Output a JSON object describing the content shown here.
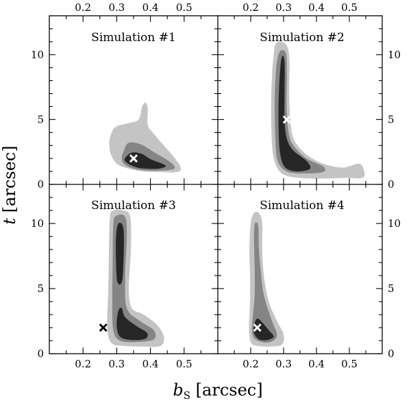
{
  "chart_data": {
    "type": "contour",
    "xlabel": {
      "base": "b",
      "sub": "S",
      "rest": " [arcsec]"
    },
    "ylabel": {
      "base": "t",
      "rest": " [arcsec]"
    },
    "shades": [
      "#c4c4c4",
      "#858585",
      "#262626"
    ],
    "panels": [
      {
        "title": "Simulation #1",
        "xlim": [
          0.1,
          0.6
        ],
        "ylim": [
          0,
          13
        ],
        "xticks": [
          0.2,
          0.3,
          0.4,
          0.5
        ],
        "yticks": [
          0,
          5,
          10
        ],
        "marker": {
          "x": 0.35,
          "y": 2.0,
          "color": "#ffffff"
        },
        "contours": [
          [
            [
              0.28,
              3.6
            ],
            [
              0.295,
              4.4
            ],
            [
              0.33,
              4.7
            ],
            [
              0.365,
              5.0
            ],
            [
              0.375,
              6.0
            ],
            [
              0.386,
              6.3
            ],
            [
              0.392,
              5.8
            ],
            [
              0.392,
              4.6
            ],
            [
              0.41,
              3.9
            ],
            [
              0.44,
              3.0
            ],
            [
              0.47,
              2.1
            ],
            [
              0.49,
              1.3
            ],
            [
              0.48,
              0.95
            ],
            [
              0.43,
              0.95
            ],
            [
              0.38,
              1.0
            ],
            [
              0.33,
              1.25
            ],
            [
              0.3,
              1.6
            ],
            [
              0.283,
              2.3
            ],
            [
              0.278,
              3.0
            ]
          ],
          [
            [
              0.32,
              2.5
            ],
            [
              0.335,
              3.2
            ],
            [
              0.37,
              3.1
            ],
            [
              0.41,
              2.5
            ],
            [
              0.46,
              1.7
            ],
            [
              0.47,
              1.2
            ],
            [
              0.42,
              1.05
            ],
            [
              0.36,
              1.15
            ],
            [
              0.325,
              1.5
            ],
            [
              0.315,
              2.0
            ]
          ],
          [
            [
              0.325,
              2.05
            ],
            [
              0.345,
              2.45
            ],
            [
              0.375,
              2.35
            ],
            [
              0.4,
              1.95
            ],
            [
              0.445,
              1.45
            ],
            [
              0.42,
              1.2
            ],
            [
              0.37,
              1.25
            ],
            [
              0.34,
              1.5
            ],
            [
              0.325,
              1.8
            ]
          ]
        ]
      },
      {
        "title": "Simulation #2",
        "xlim": [
          0.1,
          0.6
        ],
        "ylim": [
          0,
          13
        ],
        "xticks": [
          0.2,
          0.3,
          0.4,
          0.5
        ],
        "yticks": [
          0,
          5,
          10
        ],
        "marker": {
          "x": 0.31,
          "y": 5.0,
          "color": "#ffffff"
        },
        "contours": [
          [
            [
              0.27,
              10.0
            ],
            [
              0.275,
              10.8
            ],
            [
              0.29,
              11.0
            ],
            [
              0.31,
              10.7
            ],
            [
              0.318,
              9.5
            ],
            [
              0.317,
              7.0
            ],
            [
              0.322,
              4.5
            ],
            [
              0.335,
              3.3
            ],
            [
              0.37,
              2.3
            ],
            [
              0.42,
              1.6
            ],
            [
              0.48,
              1.3
            ],
            [
              0.53,
              1.6
            ],
            [
              0.545,
              1.0
            ],
            [
              0.54,
              0.5
            ],
            [
              0.49,
              0.5
            ],
            [
              0.42,
              0.45
            ],
            [
              0.35,
              0.5
            ],
            [
              0.3,
              0.75
            ],
            [
              0.275,
              1.6
            ],
            [
              0.265,
              3.0
            ],
            [
              0.262,
              6.0
            ],
            [
              0.265,
              8.5
            ]
          ],
          [
            [
              0.28,
              9.5
            ],
            [
              0.29,
              10.3
            ],
            [
              0.307,
              10.1
            ],
            [
              0.31,
              8.5
            ],
            [
              0.309,
              6.0
            ],
            [
              0.315,
              4.0
            ],
            [
              0.33,
              3.0
            ],
            [
              0.37,
              2.0
            ],
            [
              0.42,
              1.4
            ],
            [
              0.42,
              0.95
            ],
            [
              0.36,
              0.85
            ],
            [
              0.31,
              1.0
            ],
            [
              0.282,
              1.8
            ],
            [
              0.275,
              3.5
            ],
            [
              0.273,
              6.0
            ],
            [
              0.275,
              8.0
            ]
          ],
          [
            [
              0.29,
              9.0
            ],
            [
              0.296,
              9.9
            ],
            [
              0.303,
              9.4
            ],
            [
              0.303,
              7.0
            ],
            [
              0.303,
              5.0
            ],
            [
              0.31,
              3.5
            ],
            [
              0.33,
              2.6
            ],
            [
              0.37,
              1.8
            ],
            [
              0.38,
              1.2
            ],
            [
              0.34,
              1.0
            ],
            [
              0.305,
              1.3
            ],
            [
              0.29,
              2.3
            ],
            [
              0.285,
              4.0
            ],
            [
              0.285,
              6.5
            ]
          ]
        ]
      },
      {
        "title": "Simulation #3",
        "xlim": [
          0.1,
          0.6
        ],
        "ylim": [
          0,
          13
        ],
        "xticks": [
          0.2,
          0.3,
          0.4,
          0.5
        ],
        "yticks": [
          0,
          5,
          10
        ],
        "marker": {
          "x": 0.26,
          "y": 2.0,
          "color": "#000000"
        },
        "contours": [
          [
            [
              0.28,
              10.5
            ],
            [
              0.29,
              11.0
            ],
            [
              0.32,
              11.0
            ],
            [
              0.34,
              10.5
            ],
            [
              0.342,
              8.0
            ],
            [
              0.336,
              5.0
            ],
            [
              0.345,
              3.5
            ],
            [
              0.38,
              3.0
            ],
            [
              0.42,
              2.2
            ],
            [
              0.44,
              1.3
            ],
            [
              0.43,
              0.6
            ],
            [
              0.38,
              0.55
            ],
            [
              0.32,
              0.6
            ],
            [
              0.285,
              0.8
            ],
            [
              0.272,
              2.0
            ],
            [
              0.275,
              5.0
            ],
            [
              0.277,
              8.0
            ]
          ],
          [
            [
              0.29,
              10.0
            ],
            [
              0.3,
              10.6
            ],
            [
              0.325,
              10.5
            ],
            [
              0.33,
              9.0
            ],
            [
              0.325,
              6.0
            ],
            [
              0.33,
              3.5
            ],
            [
              0.37,
              2.5
            ],
            [
              0.41,
              1.8
            ],
            [
              0.41,
              1.1
            ],
            [
              0.36,
              0.9
            ],
            [
              0.31,
              1.0
            ],
            [
              0.29,
              1.8
            ],
            [
              0.287,
              4.0
            ],
            [
              0.288,
              7.0
            ]
          ],
          [
            [
              0.298,
              9.0
            ],
            [
              0.305,
              10.0
            ],
            [
              0.32,
              9.6
            ],
            [
              0.32,
              7.0
            ],
            [
              0.315,
              5.5
            ],
            [
              0.302,
              5.5
            ],
            [
              0.298,
              7.0
            ]
          ],
          [
            [
              0.305,
              3.3
            ],
            [
              0.315,
              3.5
            ],
            [
              0.325,
              2.8
            ],
            [
              0.36,
              2.1
            ],
            [
              0.39,
              1.6
            ],
            [
              0.385,
              1.15
            ],
            [
              0.345,
              1.05
            ],
            [
              0.31,
              1.3
            ],
            [
              0.3,
              2.2
            ]
          ]
        ]
      },
      {
        "title": "Simulation #4",
        "xlim": [
          0.1,
          0.6
        ],
        "ylim": [
          0,
          13
        ],
        "xticks": [
          0.2,
          0.3,
          0.4,
          0.5
        ],
        "yticks": [
          0,
          5,
          10
        ],
        "marker": {
          "x": 0.22,
          "y": 2.0,
          "color": "#ffffff"
        },
        "contours": [
          [
            [
              0.2,
              10.0
            ],
            [
              0.21,
              10.8
            ],
            [
              0.225,
              10.8
            ],
            [
              0.235,
              10.0
            ],
            [
              0.235,
              8.0
            ],
            [
              0.24,
              6.0
            ],
            [
              0.255,
              4.0
            ],
            [
              0.28,
              2.5
            ],
            [
              0.3,
              1.5
            ],
            [
              0.295,
              0.7
            ],
            [
              0.26,
              0.55
            ],
            [
              0.22,
              0.6
            ],
            [
              0.2,
              0.9
            ],
            [
              0.195,
              2.0
            ],
            [
              0.198,
              4.0
            ],
            [
              0.198,
              6.0
            ],
            [
              0.196,
              8.0
            ]
          ],
          [
            [
              0.21,
              9.0
            ],
            [
              0.213,
              10.0
            ],
            [
              0.223,
              9.8
            ],
            [
              0.225,
              8.0
            ],
            [
              0.23,
              6.5
            ],
            [
              0.24,
              4.5
            ],
            [
              0.265,
              2.5
            ],
            [
              0.28,
              1.4
            ],
            [
              0.26,
              0.9
            ],
            [
              0.225,
              0.95
            ],
            [
              0.205,
              1.5
            ],
            [
              0.207,
              3.0
            ],
            [
              0.212,
              4.5
            ],
            [
              0.212,
              6.5
            ]
          ],
          [
            [
              0.21,
              2.2
            ],
            [
              0.22,
              2.7
            ],
            [
              0.235,
              2.4
            ],
            [
              0.255,
              1.8
            ],
            [
              0.27,
              1.3
            ],
            [
              0.25,
              1.05
            ],
            [
              0.225,
              1.1
            ],
            [
              0.21,
              1.6
            ]
          ]
        ]
      }
    ]
  }
}
